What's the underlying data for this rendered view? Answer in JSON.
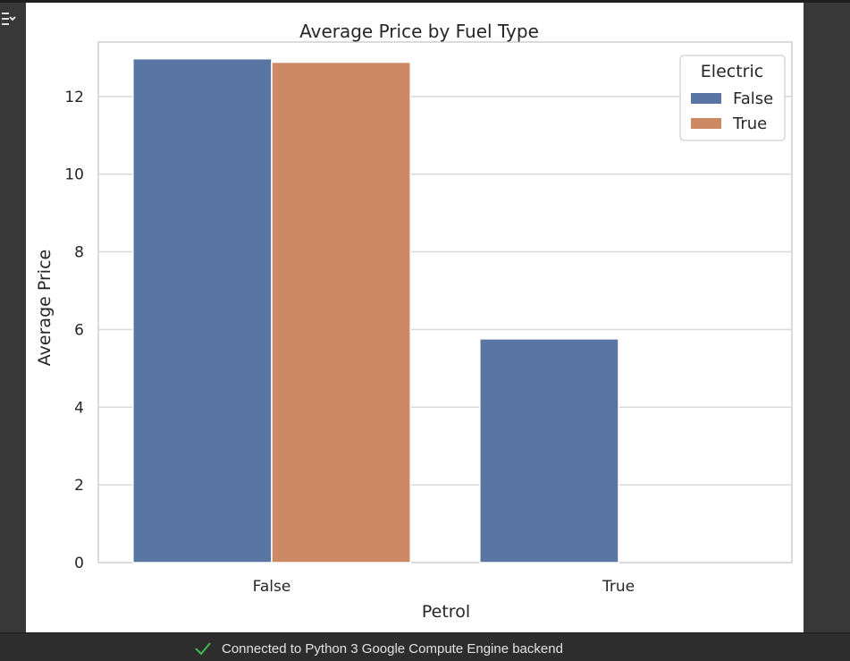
{
  "colors": {
    "false_series": "#5875a4",
    "true_series": "#cc8963",
    "status_check": "#3fb950"
  },
  "gutter": {
    "icon": "collapse-output-icon"
  },
  "status": {
    "text": "Connected to Python 3 Google Compute Engine backend",
    "icon": "check-icon"
  },
  "chart_data": {
    "type": "bar",
    "title": "Average Price by Fuel Type",
    "xlabel": "Petrol",
    "ylabel": "Average Price",
    "categories": [
      "False",
      "True"
    ],
    "series": [
      {
        "name": "False",
        "values": [
          12.97,
          5.76
        ]
      },
      {
        "name": "True",
        "values": [
          12.88,
          null
        ]
      }
    ],
    "ylim": [
      0,
      13.4
    ],
    "yticks": [
      0,
      2,
      4,
      6,
      8,
      10,
      12
    ],
    "grid": true,
    "legend": {
      "title": "Electric",
      "placement": "top-right",
      "entries": [
        "False",
        "True"
      ]
    }
  }
}
